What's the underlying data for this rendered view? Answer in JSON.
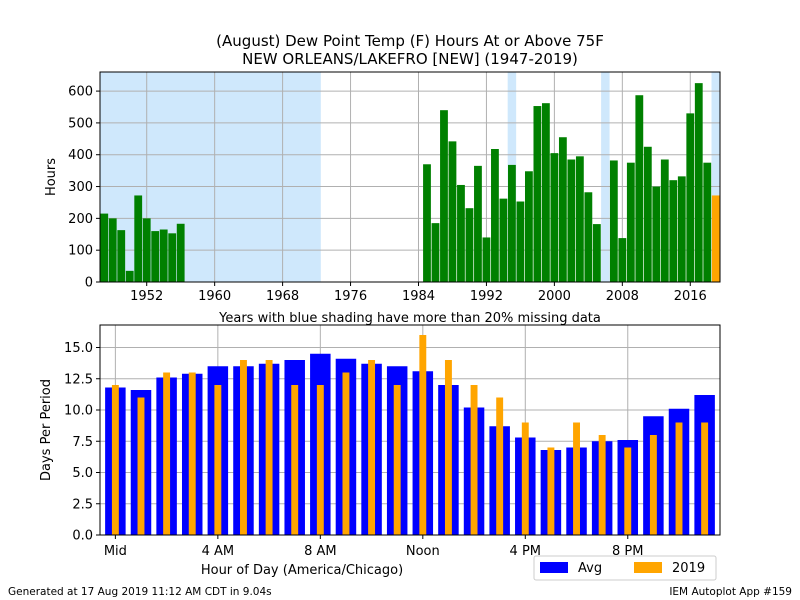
{
  "chart_data": [
    {
      "type": "bar",
      "title": "(August) Dew Point Temp (F) Hours At or Above 75F",
      "subtitle": "NEW ORLEANS/LAKEFRO [NEW] (1947-2019)",
      "ylabel": "Hours",
      "xlabel": "",
      "note": "Years with blue shading have more than 20% missing data",
      "xlim": [
        1946.5,
        2019.5
      ],
      "ylim": [
        0,
        660
      ],
      "xticks": [
        1952,
        1960,
        1968,
        1976,
        1984,
        1992,
        2000,
        2008,
        2016
      ],
      "yticks": [
        0,
        100,
        200,
        300,
        400,
        500,
        600
      ],
      "grid": true,
      "bar_color": "#008000",
      "highlight_color": "#ffa500",
      "shade_color": "#cfe8fc",
      "shaded_ranges": [
        [
          1946.5,
          1972.5
        ],
        [
          1994.5,
          1995.5
        ],
        [
          2005.5,
          2006.5
        ],
        [
          2018.5,
          2019.5
        ]
      ],
      "years": [
        1947,
        1948,
        1949,
        1950,
        1951,
        1952,
        1953,
        1954,
        1955,
        1956,
        1957,
        1958,
        1959,
        1960,
        1961,
        1962,
        1963,
        1964,
        1965,
        1966,
        1967,
        1968,
        1969,
        1970,
        1971,
        1972,
        1973,
        1974,
        1975,
        1976,
        1977,
        1978,
        1979,
        1980,
        1981,
        1982,
        1983,
        1984,
        1985,
        1986,
        1987,
        1988,
        1989,
        1990,
        1991,
        1992,
        1993,
        1994,
        1995,
        1996,
        1997,
        1998,
        1999,
        2000,
        2001,
        2002,
        2003,
        2004,
        2005,
        2006,
        2007,
        2008,
        2009,
        2010,
        2011,
        2012,
        2013,
        2014,
        2015,
        2016,
        2017,
        2018,
        2019
      ],
      "values": [
        215,
        200,
        163,
        35,
        272,
        200,
        160,
        165,
        153,
        183,
        0,
        0,
        0,
        0,
        0,
        0,
        0,
        0,
        0,
        0,
        0,
        0,
        0,
        0,
        0,
        0,
        0,
        0,
        0,
        0,
        0,
        0,
        0,
        0,
        0,
        0,
        0,
        0,
        370,
        185,
        540,
        442,
        305,
        232,
        365,
        140,
        418,
        262,
        368,
        253,
        348,
        553,
        562,
        405,
        455,
        385,
        395,
        282,
        182,
        0,
        382,
        138,
        375,
        587,
        425,
        300,
        385,
        320,
        332,
        530,
        625,
        375,
        272
      ],
      "highlight_year": 2019
    },
    {
      "type": "bar",
      "xlabel": "Hour of Day (America/Chicago)",
      "ylabel": "Days Per Period",
      "xlim": [
        -0.6,
        23.6
      ],
      "ylim": [
        0,
        16.8
      ],
      "xticks": [
        {
          "v": 0,
          "label": "Mid"
        },
        {
          "v": 4,
          "label": "4 AM"
        },
        {
          "v": 8,
          "label": "8 AM"
        },
        {
          "v": 12,
          "label": "Noon"
        },
        {
          "v": 16,
          "label": "4 PM"
        },
        {
          "v": 20,
          "label": "8 PM"
        }
      ],
      "yticks": [
        "0.0",
        "2.5",
        "5.0",
        "7.5",
        "10.0",
        "12.5",
        "15.0"
      ],
      "grid": true,
      "categories": [
        0,
        1,
        2,
        3,
        4,
        5,
        6,
        7,
        8,
        9,
        10,
        11,
        12,
        13,
        14,
        15,
        16,
        17,
        18,
        19,
        20,
        21,
        22,
        23
      ],
      "series": [
        {
          "name": "Avg",
          "color": "#0000ff",
          "values": [
            11.8,
            11.6,
            12.6,
            12.9,
            13.5,
            13.5,
            13.7,
            14.0,
            14.5,
            14.1,
            13.7,
            13.5,
            13.1,
            12.0,
            10.2,
            8.7,
            7.8,
            6.8,
            7.0,
            7.5,
            7.6,
            9.5,
            10.1,
            11.2
          ]
        },
        {
          "name": "2019",
          "color": "#ffa500",
          "values": [
            12,
            11,
            13,
            13,
            12,
            14,
            14,
            12,
            12,
            13,
            14,
            12,
            16,
            14,
            12,
            11,
            9,
            7,
            9,
            8,
            7,
            8,
            9,
            9
          ]
        }
      ],
      "legend": "bottom-right"
    }
  ],
  "footer": {
    "left": "Generated at 17 Aug 2019 11:12 AM CDT in 9.04s",
    "right": "IEM Autoplot App #159"
  }
}
